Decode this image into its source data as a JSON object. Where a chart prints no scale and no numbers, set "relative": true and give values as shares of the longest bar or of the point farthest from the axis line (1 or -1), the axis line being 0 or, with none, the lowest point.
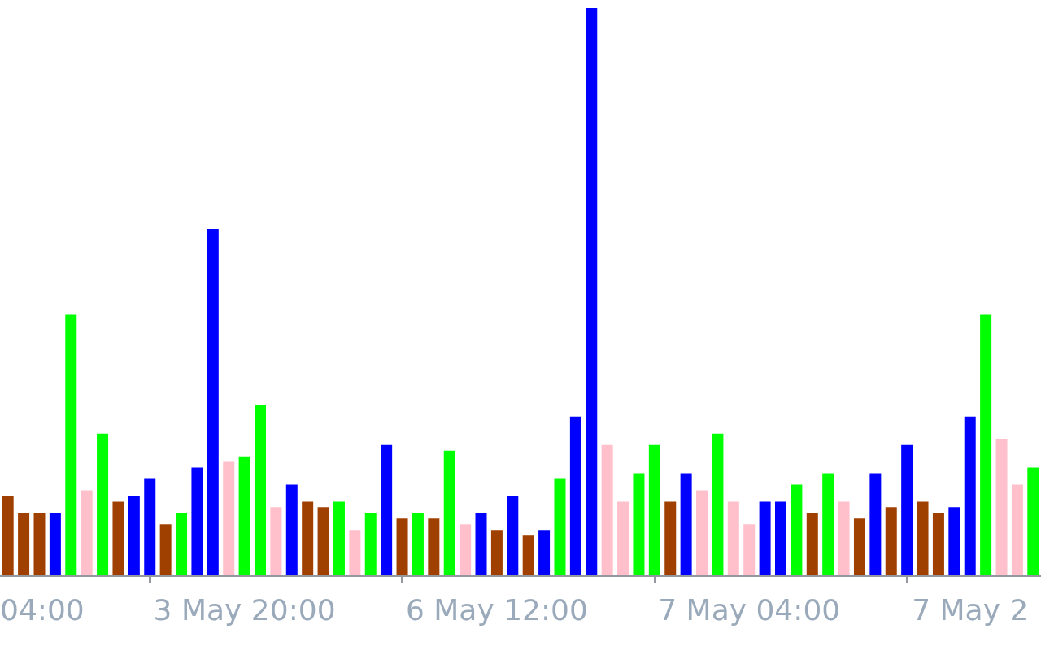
{
  "chart_data": {
    "type": "bar",
    "relative": true,
    "categories": [
      null,
      null,
      null,
      null,
      null,
      null,
      null,
      null,
      null,
      null,
      null,
      null,
      null,
      null,
      null,
      "3 May 20:00",
      null,
      null,
      null,
      null,
      null,
      null,
      null,
      null,
      null,
      null,
      null,
      null,
      null,
      null,
      null,
      "6 May 12:00",
      null,
      null,
      null,
      null,
      null,
      null,
      null,
      null,
      null,
      null,
      null,
      null,
      null,
      null,
      null,
      "7 May 04:00",
      null,
      null,
      null,
      null,
      null,
      null,
      null,
      null,
      null,
      null,
      null,
      null,
      null,
      "7 May 2",
      null,
      null,
      null,
      null
    ],
    "values": [
      0.14,
      0.11,
      0.11,
      0.11,
      0.46,
      0.15,
      0.25,
      0.13,
      0.14,
      0.17,
      0.09,
      0.11,
      0.19,
      0.61,
      0.2,
      0.21,
      0.3,
      0.12,
      0.16,
      0.13,
      0.12,
      0.13,
      0.08,
      0.11,
      0.23,
      0.1,
      0.11,
      0.1,
      0.22,
      0.09,
      0.11,
      0.08,
      0.14,
      0.07,
      0.08,
      0.17,
      0.28,
      1,
      0.23,
      0.13,
      0.18,
      0.23,
      0.13,
      0.18,
      0.15,
      0.25,
      0.13,
      0.09,
      0.13,
      0.13,
      0.16,
      0.11,
      0.18,
      0.13,
      0.1,
      0.18,
      0.12,
      0.23,
      0.13,
      0.11,
      0.12,
      0.28,
      0.46,
      0.24,
      0.16,
      0.19
    ],
    "colors": [
      "#a04000",
      "#a04000",
      "#a04000",
      "#0000ff",
      "#00ff00",
      "#ffc0cb",
      "#00ff00",
      "#a04000",
      "#0000ff",
      "#0000ff",
      "#a04000",
      "#00ff00",
      "#0000ff",
      "#0000ff",
      "#ffc0cb",
      "#00ff00",
      "#00ff00",
      "#ffc0cb",
      "#0000ff",
      "#a04000",
      "#a04000",
      "#00ff00",
      "#ffc0cb",
      "#00ff00",
      "#0000ff",
      "#a04000",
      "#00ff00",
      "#a04000",
      "#00ff00",
      "#ffc0cb",
      "#0000ff",
      "#a04000",
      "#0000ff",
      "#a04000",
      "#0000ff",
      "#00ff00",
      "#0000ff",
      "#0000ff",
      "#ffc0cb",
      "#ffc0cb",
      "#00ff00",
      "#00ff00",
      "#a04000",
      "#0000ff",
      "#ffc0cb",
      "#00ff00",
      "#ffc0cb",
      "#ffc0cb",
      "#0000ff",
      "#0000ff",
      "#00ff00",
      "#a04000",
      "#00ff00",
      "#ffc0cb",
      "#a04000",
      "#0000ff",
      "#a04000",
      "#0000ff",
      "#a04000",
      "#a04000",
      "#0000ff",
      "#0000ff",
      "#00ff00",
      "#ffc0cb",
      "#ffc0cb",
      "#00ff00"
    ],
    "annotations": [
      "04:00"
    ]
  }
}
